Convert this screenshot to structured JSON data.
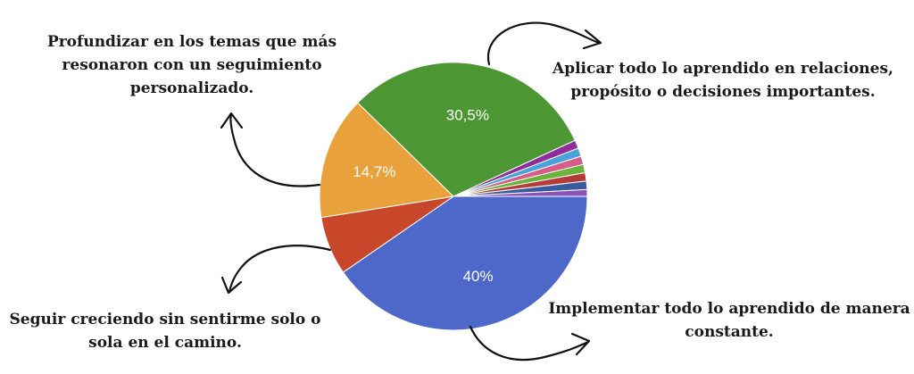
{
  "chart_data": {
    "type": "pie",
    "title": "",
    "start_angle_deg": 90,
    "slices": [
      {
        "label": "40%",
        "value": 40.0,
        "color": "#4e68c9",
        "show_label": true
      },
      {
        "label": "",
        "value": 7.0,
        "color": "#c8472b",
        "show_label": false
      },
      {
        "label": "14,7%",
        "value": 14.7,
        "color": "#e9a13b",
        "show_label": true
      },
      {
        "label": "30,5%",
        "value": 30.5,
        "color": "#4d9634",
        "show_label": true
      },
      {
        "label": "",
        "value": 1.0,
        "color": "#8e2d9b",
        "show_label": false
      },
      {
        "label": "",
        "value": 1.0,
        "color": "#4aa3d8",
        "show_label": false
      },
      {
        "label": "",
        "value": 1.0,
        "color": "#d65d8a",
        "show_label": false
      },
      {
        "label": "",
        "value": 1.0,
        "color": "#6bb33a",
        "show_label": false
      },
      {
        "label": "",
        "value": 1.0,
        "color": "#b53a3a",
        "show_label": false
      },
      {
        "label": "",
        "value": 1.0,
        "color": "#3a5a9e",
        "show_label": false
      },
      {
        "label": "",
        "value": 0.8,
        "color": "#8a55b8",
        "show_label": false
      }
    ]
  },
  "callouts": {
    "top_left": [
      "Profundizar en los temas que más",
      "resonaron con un seguimiento",
      "personalizado."
    ],
    "top_right": [
      "Aplicar todo lo aprendido en relaciones,",
      "propósito o decisiones importantes."
    ],
    "bottom_left": [
      "Seguir creciendo sin sentirme solo o",
      "sola en el camino."
    ],
    "bottom_right": [
      "Implementar todo lo aprendido de manera",
      "constante."
    ]
  }
}
